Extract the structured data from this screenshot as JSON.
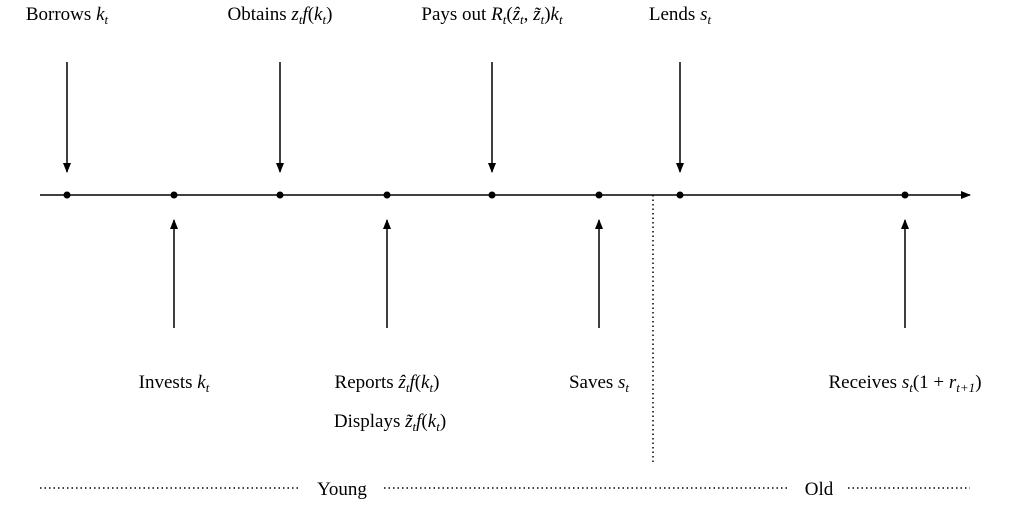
{
  "top_labels": [
    {
      "parts": [
        {
          "r": "Borrows "
        },
        {
          "i": "k"
        },
        {
          "s": "t"
        }
      ]
    },
    {
      "parts": [
        {
          "r": "Obtains "
        },
        {
          "i": "z"
        },
        {
          "s": "t"
        },
        {
          "i": "f"
        },
        {
          "r": "("
        },
        {
          "i": "k"
        },
        {
          "s": "t"
        },
        {
          "r": ")"
        }
      ]
    },
    {
      "parts": [
        {
          "r": "Pays out "
        },
        {
          "i": "R"
        },
        {
          "s": "t"
        },
        {
          "r": "("
        },
        {
          "i": "ẑ"
        },
        {
          "s": "t"
        },
        {
          "r": ", "
        },
        {
          "i": "z̃"
        },
        {
          "s": "t"
        },
        {
          "r": ")"
        },
        {
          "i": "k"
        },
        {
          "s": "t"
        }
      ]
    },
    {
      "parts": [
        {
          "r": "Lends "
        },
        {
          "i": "s"
        },
        {
          "s": "t"
        }
      ]
    }
  ],
  "bottom_labels": [
    {
      "parts": [
        {
          "r": "Invests "
        },
        {
          "i": "k"
        },
        {
          "s": "t"
        }
      ]
    },
    {
      "parts": [
        {
          "r": "Reports "
        },
        {
          "i": "ẑ"
        },
        {
          "s": "t"
        },
        {
          "i": "f"
        },
        {
          "r": "("
        },
        {
          "i": "k"
        },
        {
          "s": "t"
        },
        {
          "r": ")"
        }
      ]
    },
    {
      "parts": [
        {
          "r": "Displays "
        },
        {
          "i": "z̃"
        },
        {
          "s": "t"
        },
        {
          "i": "f"
        },
        {
          "r": "("
        },
        {
          "i": "k"
        },
        {
          "s": "t"
        },
        {
          "r": ")"
        }
      ]
    },
    {
      "parts": [
        {
          "r": "Saves "
        },
        {
          "i": "s"
        },
        {
          "s": "t"
        }
      ]
    },
    {
      "parts": [
        {
          "r": "Receives "
        },
        {
          "i": "s"
        },
        {
          "s": "t"
        },
        {
          "r": "(1 + "
        },
        {
          "i": "r"
        },
        {
          "s": "t+1"
        },
        {
          "r": ")"
        }
      ]
    }
  ],
  "periods": [
    "Young",
    "Old"
  ]
}
